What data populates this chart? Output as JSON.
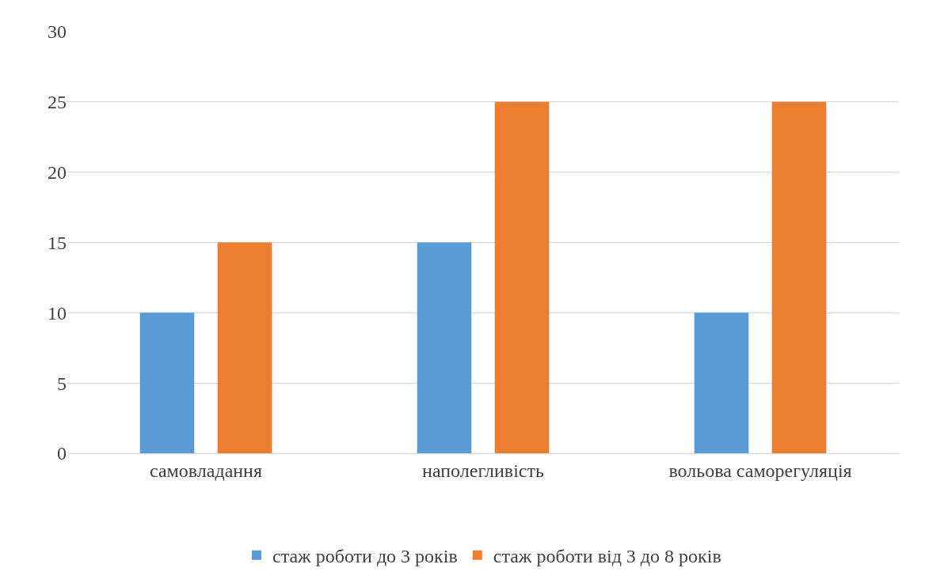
{
  "chart_data": {
    "type": "bar",
    "categories": [
      "самовладання",
      "наполегливість",
      "вольова саморегуляція"
    ],
    "series": [
      {
        "name": "стаж роботи до 3 років",
        "color": "#5b9bd5",
        "values": [
          10,
          15,
          10
        ]
      },
      {
        "name": "стаж роботи від 3 до 8 років",
        "color": "#ed7d31",
        "values": [
          15,
          25,
          25
        ]
      }
    ],
    "ylim": [
      0,
      30
    ],
    "yticks": [
      0,
      5,
      10,
      15,
      20,
      25,
      30
    ],
    "grid": "y",
    "legend": "bottom"
  }
}
